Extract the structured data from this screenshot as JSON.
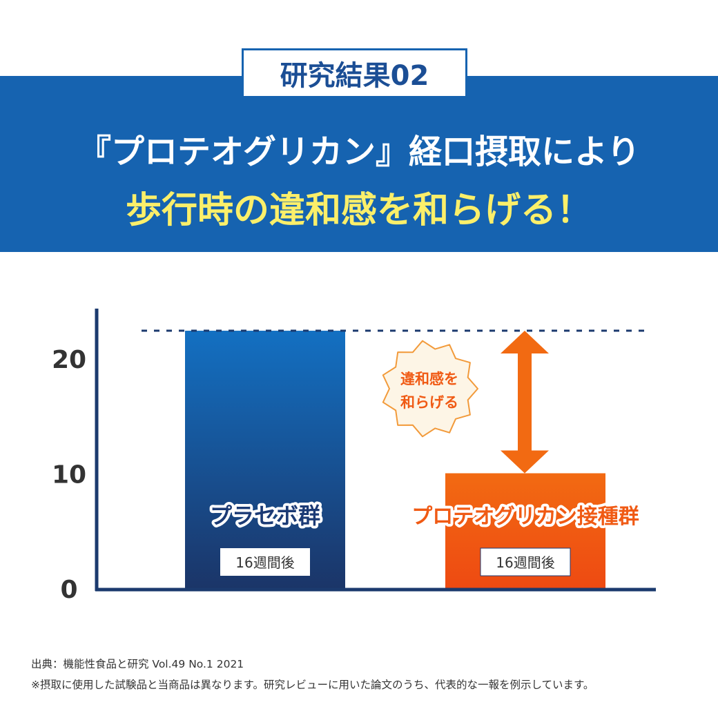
{
  "header": {
    "badge": "研究結果02",
    "line1": "『プロテオグリカン』経口摂取により",
    "line2": "歩行時の違和感を和らげる！"
  },
  "chart_data": {
    "type": "bar",
    "categories": [
      "プラセボ群",
      "プロテオグリカン接種群"
    ],
    "values": [
      22.4,
      10
    ],
    "bar_sublabels": [
      "16週間後",
      "16週間後"
    ],
    "yticks": [
      0,
      10,
      20
    ],
    "ylim": [
      0,
      24
    ],
    "grid": false,
    "colors": [
      "#1a3a75",
      "#f05a14"
    ],
    "annotation": {
      "line1": "違和感を",
      "line2": "和らげる"
    }
  },
  "footer": {
    "source": "出典：機能性食品と研究 Vol.49 No.1 2021",
    "disclaimer": "※摂取に使用した試験品と当商品は異なります。研究レビューに用いた論文のうち、代表的な一報を例示しています。"
  }
}
